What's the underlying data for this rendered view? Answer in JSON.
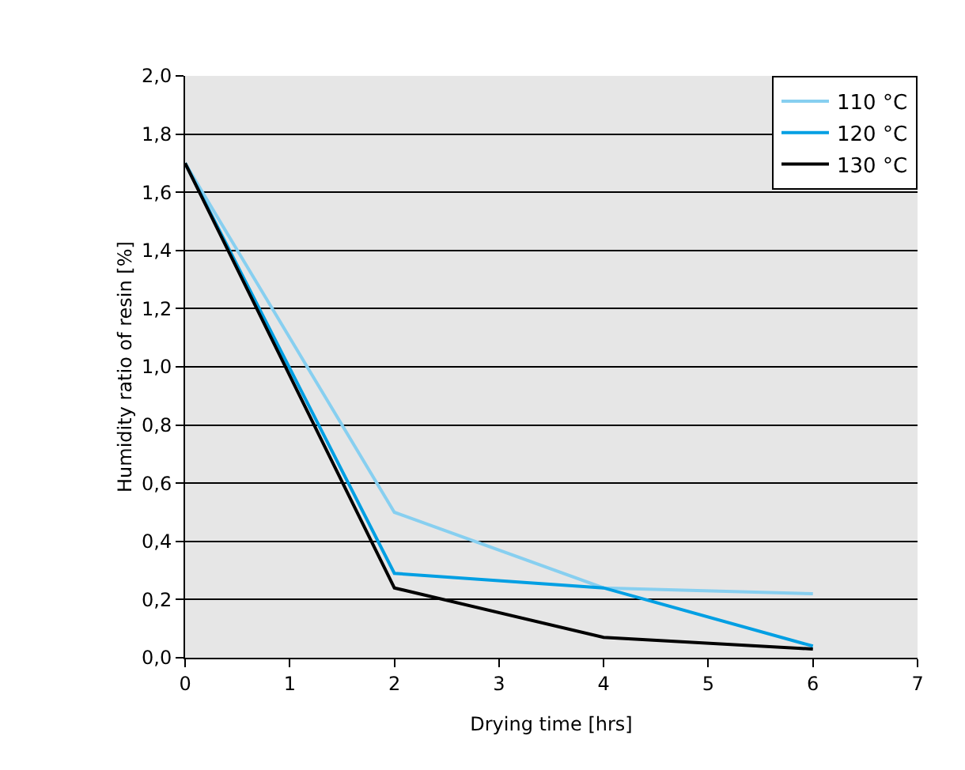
{
  "chart_data": {
    "type": "line",
    "xlabel": "Drying time [hrs]",
    "ylabel": "Humidity ratio of resin [%]",
    "x": [
      0,
      2,
      4,
      6
    ],
    "series": [
      {
        "name": "110 °C",
        "color": "#87cff0",
        "values": [
          1.7,
          0.5,
          0.24,
          0.22
        ]
      },
      {
        "name": "120 °C",
        "color": "#009fe3",
        "values": [
          1.7,
          0.29,
          0.24,
          0.04
        ]
      },
      {
        "name": "130 °C",
        "color": "#000000",
        "values": [
          1.7,
          0.24,
          0.07,
          0.03
        ]
      }
    ],
    "xlim": [
      0,
      7
    ],
    "xticks": [
      0,
      1,
      2,
      3,
      4,
      5,
      6,
      7
    ],
    "ylim": [
      0,
      2
    ],
    "yticks": [
      {
        "value": 0,
        "label": "0,0"
      },
      {
        "value": 0.2,
        "label": "0,2"
      },
      {
        "value": 0.4,
        "label": "0,4"
      },
      {
        "value": 0.6,
        "label": "0,6"
      },
      {
        "value": 0.8,
        "label": "0,8"
      },
      {
        "value": 1.0,
        "label": "1,0"
      },
      {
        "value": 1.2,
        "label": "1,2"
      },
      {
        "value": 1.4,
        "label": "1,4"
      },
      {
        "value": 1.6,
        "label": "1,6"
      },
      {
        "value": 1.8,
        "label": "1,8"
      },
      {
        "value": 2.0,
        "label": "2,0"
      }
    ],
    "grid": "y",
    "legend": "top right",
    "marker": "none",
    "line_style": "solid"
  }
}
